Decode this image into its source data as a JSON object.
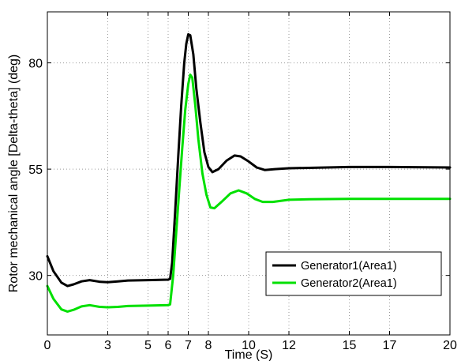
{
  "chart_data": {
    "type": "line",
    "title": "",
    "xlabel": "Time (S)",
    "ylabel": "Rotor mechanical angle [Delta-theta] (deg)",
    "xlim": [
      0,
      20
    ],
    "ylim": [
      16,
      92
    ],
    "xticks": [
      0,
      3,
      5,
      6,
      7,
      8,
      10,
      12,
      15,
      17,
      20
    ],
    "yticks": [
      30,
      55,
      80
    ],
    "grid": true,
    "grid_style": "dotted",
    "legend_position": "bottom-right",
    "series": [
      {
        "name": "Generator1(Area1)",
        "color": "#000000",
        "points": [
          [
            0.0,
            34.5
          ],
          [
            0.3,
            31.0
          ],
          [
            0.7,
            28.3
          ],
          [
            1.0,
            27.5
          ],
          [
            1.3,
            27.9
          ],
          [
            1.7,
            28.6
          ],
          [
            2.1,
            28.9
          ],
          [
            2.6,
            28.5
          ],
          [
            3.0,
            28.4
          ],
          [
            3.5,
            28.6
          ],
          [
            4.0,
            28.8
          ],
          [
            5.0,
            28.9
          ],
          [
            6.0,
            29.0
          ],
          [
            6.1,
            29.2
          ],
          [
            6.2,
            33.0
          ],
          [
            6.35,
            45.0
          ],
          [
            6.5,
            58.0
          ],
          [
            6.65,
            70.0
          ],
          [
            6.8,
            80.0
          ],
          [
            6.9,
            84.5
          ],
          [
            7.0,
            86.7
          ],
          [
            7.1,
            86.5
          ],
          [
            7.25,
            82.0
          ],
          [
            7.4,
            74.0
          ],
          [
            7.6,
            66.0
          ],
          [
            7.8,
            59.0
          ],
          [
            8.0,
            55.5
          ],
          [
            8.2,
            54.3
          ],
          [
            8.5,
            55.0
          ],
          [
            8.9,
            57.0
          ],
          [
            9.3,
            58.2
          ],
          [
            9.6,
            58.0
          ],
          [
            10.0,
            56.8
          ],
          [
            10.4,
            55.4
          ],
          [
            10.8,
            54.8
          ],
          [
            11.3,
            55.0
          ],
          [
            12.0,
            55.2
          ],
          [
            13.0,
            55.3
          ],
          [
            15.0,
            55.5
          ],
          [
            17.0,
            55.5
          ],
          [
            20.0,
            55.4
          ]
        ]
      },
      {
        "name": "Generator2(Area1)",
        "color": "#00e000",
        "points": [
          [
            0.0,
            27.5
          ],
          [
            0.3,
            24.5
          ],
          [
            0.7,
            22.0
          ],
          [
            1.0,
            21.5
          ],
          [
            1.3,
            21.9
          ],
          [
            1.7,
            22.7
          ],
          [
            2.1,
            23.0
          ],
          [
            2.6,
            22.6
          ],
          [
            3.0,
            22.5
          ],
          [
            3.5,
            22.6
          ],
          [
            4.0,
            22.8
          ],
          [
            5.0,
            22.9
          ],
          [
            6.0,
            23.0
          ],
          [
            6.1,
            23.2
          ],
          [
            6.25,
            30.0
          ],
          [
            6.4,
            40.0
          ],
          [
            6.55,
            50.0
          ],
          [
            6.7,
            60.0
          ],
          [
            6.85,
            69.0
          ],
          [
            7.0,
            75.0
          ],
          [
            7.1,
            77.2
          ],
          [
            7.2,
            76.5
          ],
          [
            7.35,
            70.0
          ],
          [
            7.5,
            62.0
          ],
          [
            7.7,
            54.0
          ],
          [
            7.9,
            49.0
          ],
          [
            8.1,
            46.0
          ],
          [
            8.3,
            45.8
          ],
          [
            8.7,
            47.5
          ],
          [
            9.1,
            49.3
          ],
          [
            9.5,
            50.0
          ],
          [
            9.9,
            49.3
          ],
          [
            10.3,
            48.0
          ],
          [
            10.7,
            47.3
          ],
          [
            11.2,
            47.3
          ],
          [
            12.0,
            47.8
          ],
          [
            13.0,
            47.9
          ],
          [
            15.0,
            48.0
          ],
          [
            17.0,
            48.0
          ],
          [
            20.0,
            48.0
          ]
        ]
      }
    ]
  }
}
